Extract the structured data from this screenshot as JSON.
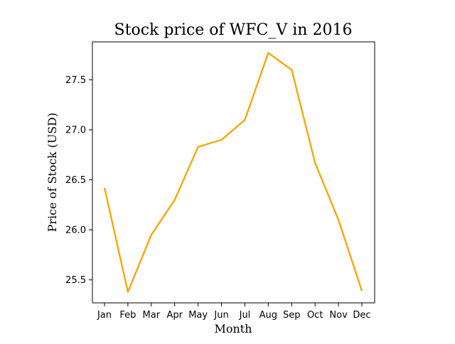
{
  "chart_data": {
    "type": "line",
    "title": "Stock price of WFC_V in 2016",
    "xlabel": "Month",
    "ylabel": "Price of Stock (USD)",
    "categories": [
      "Jan",
      "Feb",
      "Mar",
      "Apr",
      "May",
      "Jun",
      "Jul",
      "Aug",
      "Sep",
      "Oct",
      "Nov",
      "Dec"
    ],
    "series": [
      {
        "values": [
          26.42,
          25.38,
          25.95,
          26.3,
          26.83,
          26.9,
          27.1,
          27.77,
          27.6,
          26.67,
          26.1,
          25.39
        ],
        "color": "#f5a500"
      }
    ],
    "yticks": [
      "25.5",
      "26.0",
      "26.5",
      "27.0",
      "27.5"
    ],
    "ylim": [
      25.27,
      27.88
    ],
    "grid": false,
    "legend": "none"
  }
}
